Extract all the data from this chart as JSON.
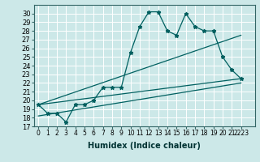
{
  "xlabel": "Humidex (Indice chaleur)",
  "background_color": "#cce8e8",
  "grid_color": "#ffffff",
  "line_color": "#006060",
  "xlim": [
    -0.5,
    23.5
  ],
  "ylim": [
    17,
    31
  ],
  "yticks": [
    17,
    18,
    19,
    20,
    21,
    22,
    23,
    24,
    25,
    26,
    27,
    28,
    29,
    30
  ],
  "xtick_labels": [
    "0",
    "1",
    "2",
    "3",
    "4",
    "5",
    "6",
    "7",
    "8",
    "9",
    "10",
    "11",
    "12",
    "13",
    "14",
    "15",
    "16",
    "17",
    "18",
    "19",
    "20",
    "21",
    "2223"
  ],
  "series1_x": [
    0,
    1,
    2,
    3,
    4,
    5,
    6,
    7,
    8,
    9,
    10,
    11,
    12,
    13,
    14,
    15,
    16,
    17,
    18,
    19,
    20,
    21,
    22
  ],
  "series1_y": [
    19.5,
    18.5,
    18.5,
    17.5,
    19.5,
    19.5,
    20.0,
    21.5,
    21.5,
    21.5,
    25.5,
    28.5,
    30.2,
    30.2,
    28.0,
    27.5,
    30.0,
    28.5,
    28.0,
    28.0,
    25.0,
    23.5,
    22.5
  ],
  "series2_x": [
    0,
    22
  ],
  "series2_y": [
    19.5,
    22.5
  ],
  "series3_x": [
    0,
    22
  ],
  "series3_y": [
    19.5,
    27.5
  ],
  "series4_x": [
    0,
    22
  ],
  "series4_y": [
    18.2,
    22.0
  ],
  "xlabel_fontsize": 7,
  "tick_fontsize": 5.5,
  "ytick_fontsize": 6
}
